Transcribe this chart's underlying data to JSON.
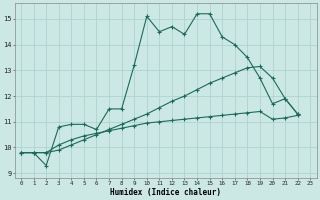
{
  "xlabel": "Humidex (Indice chaleur)",
  "bg_color": "#cce8e4",
  "grid_color": "#aacfcb",
  "line_color": "#1a6b5a",
  "xlim": [
    -0.5,
    23.5
  ],
  "ylim": [
    8.8,
    15.6
  ],
  "yticks": [
    9,
    10,
    11,
    12,
    13,
    14,
    15
  ],
  "xticks": [
    0,
    1,
    2,
    3,
    4,
    5,
    6,
    7,
    8,
    9,
    10,
    11,
    12,
    13,
    14,
    15,
    16,
    17,
    18,
    19,
    20,
    21,
    22,
    23
  ],
  "x": [
    0,
    1,
    2,
    3,
    4,
    5,
    6,
    7,
    8,
    9,
    10,
    11,
    12,
    13,
    14,
    15,
    16,
    17,
    18,
    19,
    20,
    21,
    22,
    23
  ],
  "line1": [
    9.8,
    9.8,
    9.3,
    10.8,
    10.9,
    10.9,
    10.7,
    11.5,
    11.5,
    13.2,
    15.1,
    14.5,
    14.7,
    14.4,
    15.2,
    15.2,
    14.3,
    14.0,
    13.5,
    12.7,
    11.7,
    11.9,
    11.3,
    null
  ],
  "line2": [
    9.8,
    9.8,
    9.8,
    10.1,
    10.3,
    10.45,
    10.55,
    10.65,
    10.75,
    10.85,
    10.95,
    11.0,
    11.05,
    11.1,
    11.15,
    11.2,
    11.25,
    11.3,
    11.35,
    11.4,
    11.1,
    11.15,
    11.25,
    null
  ],
  "line3": [
    9.8,
    9.8,
    9.8,
    9.9,
    10.1,
    10.3,
    10.5,
    10.7,
    10.9,
    11.1,
    11.3,
    11.55,
    11.8,
    12.0,
    12.25,
    12.5,
    12.7,
    12.9,
    13.1,
    13.15,
    12.7,
    11.9,
    11.3,
    null
  ]
}
